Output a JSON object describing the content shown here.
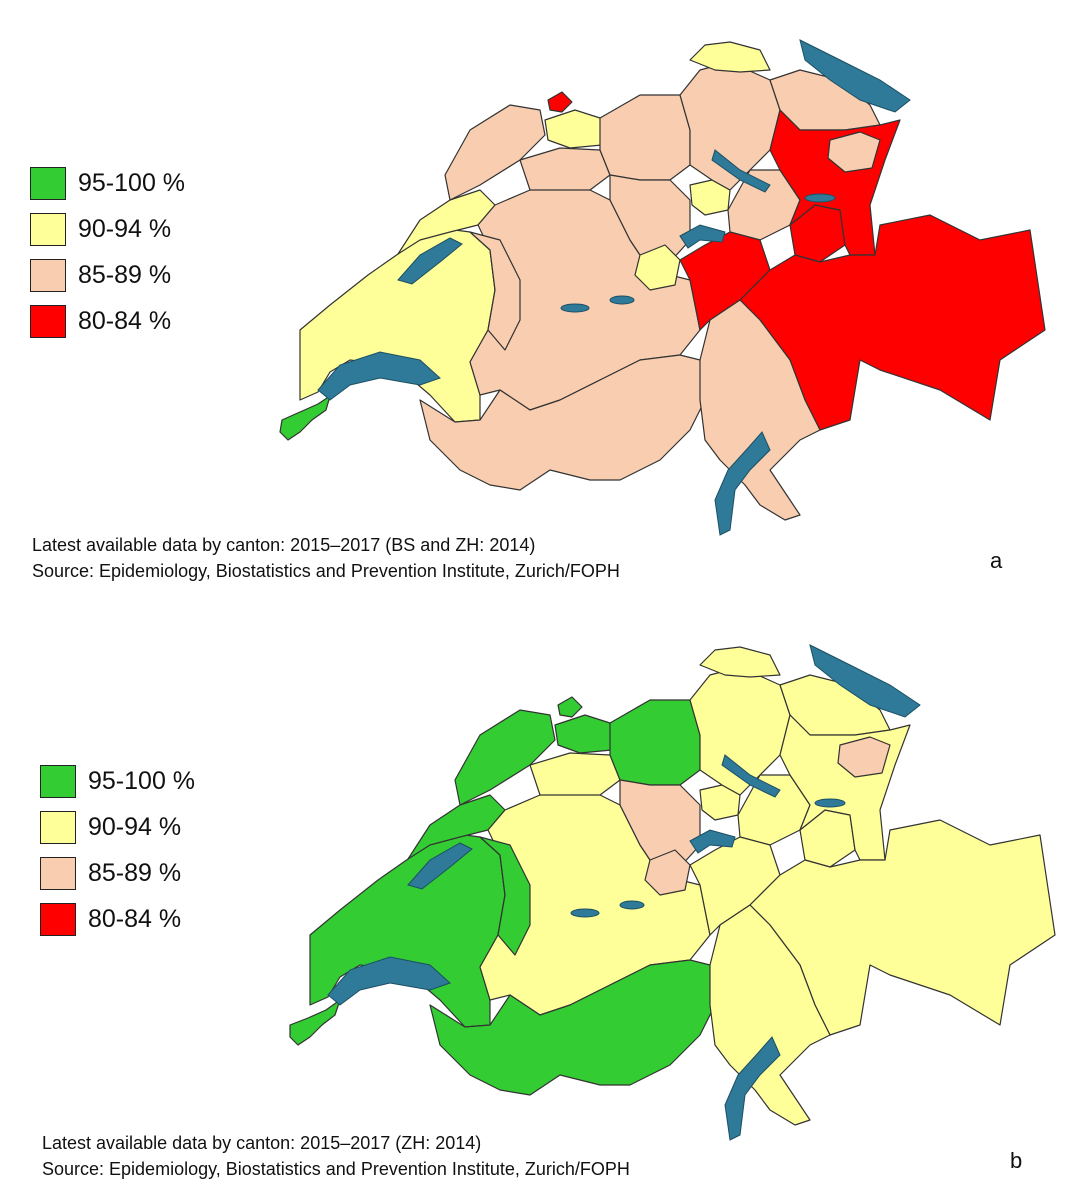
{
  "colors": {
    "c95": "#33cc33",
    "c90": "#ffff99",
    "c85": "#f8cdb0",
    "c80": "#ff0000",
    "lake": "#2e7a98"
  },
  "legend": [
    {
      "label": "95-100 %",
      "color_key": "c95"
    },
    {
      "label": "90-94 %",
      "color_key": "c90"
    },
    {
      "label": "85-89 %",
      "color_key": "c85"
    },
    {
      "label": "80-84 %",
      "color_key": "c80"
    }
  ],
  "panel_a": {
    "letter": "a",
    "caption_line1": "Latest available data by canton: 2015–2017 (BS and ZH: 2014)",
    "caption_line2": "Source: Epidemiology, Biostatistics and Prevention Institute, Zurich/FOPH",
    "regions": {
      "geneva": "c95",
      "vaud": "c90",
      "neuchatel": "c90",
      "jura": "c85",
      "bern": "c85",
      "valais": "c85",
      "fribourg": "c85",
      "solothurn": "c85",
      "basel": "c80",
      "basel_land": "c90",
      "aargau": "c85",
      "lucerne": "c85",
      "zug": "c90",
      "zurich": "c85",
      "schaffhausen": "c90",
      "thurgau": "c85",
      "stgallen": "c80",
      "appenzell": "c85",
      "glarus": "c80",
      "schwyz": "c85",
      "uri": "c80",
      "nidwalden": "c90",
      "graubunden": "c80",
      "ticino": "c85"
    }
  },
  "panel_b": {
    "letter": "b",
    "caption_line1": "Latest available data by canton: 2015–2017 (ZH: 2014)",
    "caption_line2": "Source: Epidemiology, Biostatistics and Prevention Institute, Zurich/FOPH",
    "regions": {
      "geneva": "c95",
      "vaud": "c95",
      "neuchatel": "c95",
      "jura": "c95",
      "bern": "c90",
      "valais": "c95",
      "fribourg": "c95",
      "solothurn": "c90",
      "basel": "c95",
      "basel_land": "c95",
      "aargau": "c95",
      "lucerne": "c85",
      "zug": "c90",
      "zurich": "c90",
      "schaffhausen": "c90",
      "thurgau": "c90",
      "stgallen": "c90",
      "appenzell": "c85",
      "glarus": "c90",
      "schwyz": "c90",
      "uri": "c90",
      "nidwalden": "c85",
      "graubunden": "c90",
      "ticino": "c90"
    }
  }
}
